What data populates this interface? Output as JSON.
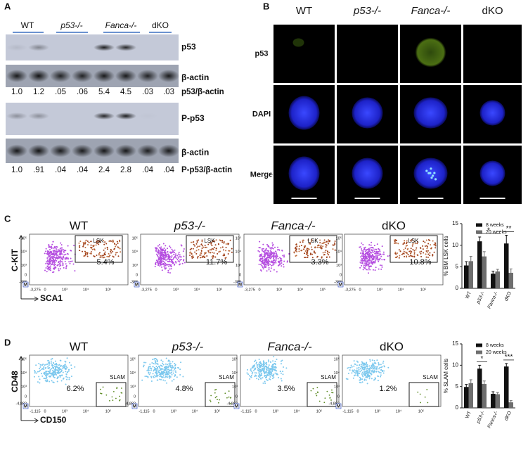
{
  "panel_labels": [
    "A",
    "B",
    "C",
    "D"
  ],
  "genotypes": [
    "WT",
    "p53-/-",
    "Fanca-/-",
    "dKO"
  ],
  "western": {
    "blots": [
      "p53",
      "β-actin",
      "P-p53",
      "β-actin"
    ],
    "ratio_rows": [
      {
        "label": "p53/β-actin",
        "values": [
          "1.0",
          "1.2",
          ".05",
          ".06",
          "5.4",
          "4.5",
          ".03",
          ".03"
        ]
      },
      {
        "label": "P-p53/β-actin",
        "values": [
          "1.0",
          ".91",
          ".04",
          ".04",
          "2.4",
          "2.8",
          ".04",
          ".04"
        ]
      }
    ]
  },
  "microscopy": {
    "rows": [
      "p53",
      "DAPI",
      "Merge"
    ]
  },
  "flow": [
    {
      "gate": "LSK",
      "percents": [
        "5.4%",
        "11.7%",
        "3.3%",
        "10.8%"
      ],
      "y_axis": "C-KIT",
      "x_axis": "SCA1",
      "corner": "M",
      "xticks": [
        "-3,275",
        "0",
        "10³",
        "10⁴",
        "10⁵"
      ],
      "yticks": [
        "-388",
        "0",
        "10³",
        "10⁴",
        "10⁵"
      ]
    },
    {
      "gate": "SLAM",
      "percents": [
        "6.2%",
        "4.8%",
        "3.5%",
        "1.2%"
      ],
      "y_axis": "CD48",
      "x_axis": "CD150",
      "corner": "M",
      "xticks": [
        "-1,115",
        "0",
        "10³",
        "10⁴",
        "10⁵"
      ],
      "yticks": [
        "-4,882",
        "0",
        "10³",
        "10⁴",
        "10⁵"
      ]
    }
  ],
  "chart_data": [
    {
      "type": "bar",
      "y_label": "% BM LSK cells",
      "categories": [
        "WT",
        "p53-/-",
        "Fanca-/-",
        "dKO"
      ],
      "series": [
        {
          "name": "8 weeks",
          "color": "#111111",
          "values": [
            5.3,
            10.9,
            3.4,
            10.4
          ],
          "errors": [
            0.9,
            1.0,
            0.6,
            1.9
          ]
        },
        {
          "name": "20 weeks",
          "color": "#6e6e6e",
          "values": [
            6.3,
            7.4,
            3.9,
            3.6
          ],
          "errors": [
            1.1,
            1.1,
            0.5,
            0.9
          ]
        }
      ],
      "ylim": [
        0,
        15
      ],
      "yticks": [
        0,
        5,
        10,
        15
      ],
      "annotations": [
        "*",
        "**"
      ]
    },
    {
      "type": "bar",
      "y_label": "% SLAM cells",
      "categories": [
        "WT",
        "p53-/-",
        "Fanca-/-",
        "dKO"
      ],
      "series": [
        {
          "name": "8 weeks",
          "color": "#111111",
          "values": [
            4.9,
            9.2,
            3.3,
            9.7
          ],
          "errors": [
            0.6,
            0.8,
            0.5,
            0.7
          ]
        },
        {
          "name": "20 weeks",
          "color": "#6e6e6e",
          "values": [
            5.8,
            5.6,
            3.2,
            1.3
          ],
          "errors": [
            0.8,
            0.7,
            0.4,
            0.4
          ]
        }
      ],
      "ylim": [
        0,
        15
      ],
      "yticks": [
        0,
        5,
        10,
        15
      ],
      "annotations": [
        "*",
        "***"
      ]
    }
  ]
}
